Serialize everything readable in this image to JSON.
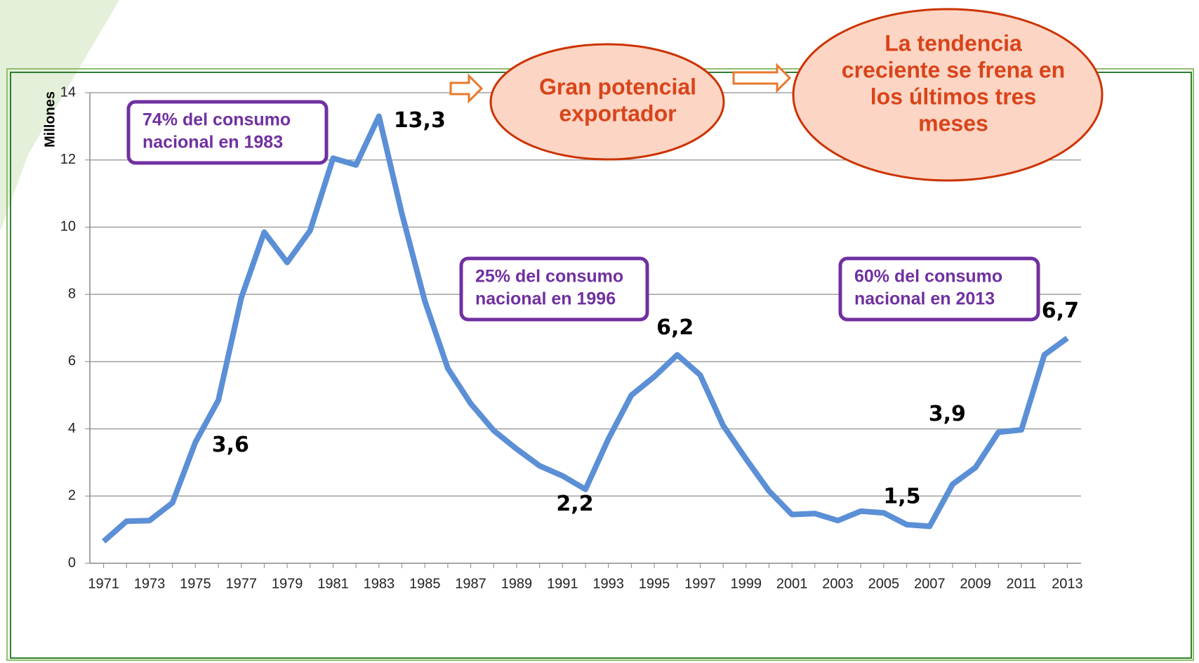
{
  "chart_data": {
    "type": "line",
    "ylabel": "Millones",
    "x": [
      1971,
      1972,
      1973,
      1974,
      1975,
      1976,
      1977,
      1978,
      1979,
      1980,
      1981,
      1982,
      1983,
      1984,
      1985,
      1986,
      1987,
      1988,
      1989,
      1990,
      1991,
      1992,
      1993,
      1994,
      1995,
      1996,
      1997,
      1998,
      1999,
      2000,
      2001,
      2002,
      2003,
      2004,
      2005,
      2006,
      2007,
      2008,
      2009,
      2010,
      2011,
      2012,
      2013
    ],
    "series": [
      {
        "color": "#5b8fd6",
        "values": [
          0.65,
          1.25,
          1.27,
          1.8,
          3.6,
          4.85,
          7.9,
          9.85,
          8.95,
          9.9,
          12.05,
          11.85,
          13.3,
          10.4,
          7.8,
          5.8,
          4.75,
          3.95,
          3.4,
          2.9,
          2.6,
          2.2,
          3.7,
          5.0,
          5.55,
          6.2,
          5.6,
          4.1,
          3.1,
          2.15,
          1.45,
          1.48,
          1.27,
          1.55,
          1.5,
          1.15,
          1.1,
          2.35,
          2.85,
          3.9,
          3.97,
          6.2,
          6.7
        ],
        "value_labels": [
          null,
          null,
          null,
          null,
          "3,6",
          null,
          null,
          null,
          null,
          null,
          null,
          null,
          "13,3",
          null,
          null,
          null,
          null,
          null,
          null,
          null,
          null,
          "2,2",
          null,
          null,
          null,
          "6,2",
          null,
          null,
          null,
          null,
          null,
          null,
          null,
          null,
          "1,5",
          null,
          null,
          null,
          null,
          "3,9",
          null,
          null,
          "6,7"
        ]
      }
    ],
    "xlim": [
      1970.4,
      2013.6
    ],
    "xticks": [
      1971,
      1973,
      1975,
      1977,
      1979,
      1981,
      1983,
      1985,
      1987,
      1989,
      1991,
      1993,
      1995,
      1997,
      1999,
      2001,
      2003,
      2005,
      2007,
      2009,
      2011,
      2013
    ],
    "ylim": [
      0,
      14
    ],
    "yticks": [
      0,
      2,
      4,
      6,
      8,
      10,
      12,
      14
    ],
    "grid": true,
    "annotations": {
      "boxes": [
        [
          "74% del consumo",
          "nacional en 1983"
        ],
        [
          "25% del consumo",
          "nacional en 1996"
        ],
        [
          "60% del consumo",
          "nacional en 2013"
        ]
      ],
      "bubbles": [
        [
          "Gran potencial",
          "exportador"
        ],
        [
          "La tendencia",
          "creciente se frena en",
          "los últimos tres",
          "meses"
        ]
      ]
    }
  }
}
